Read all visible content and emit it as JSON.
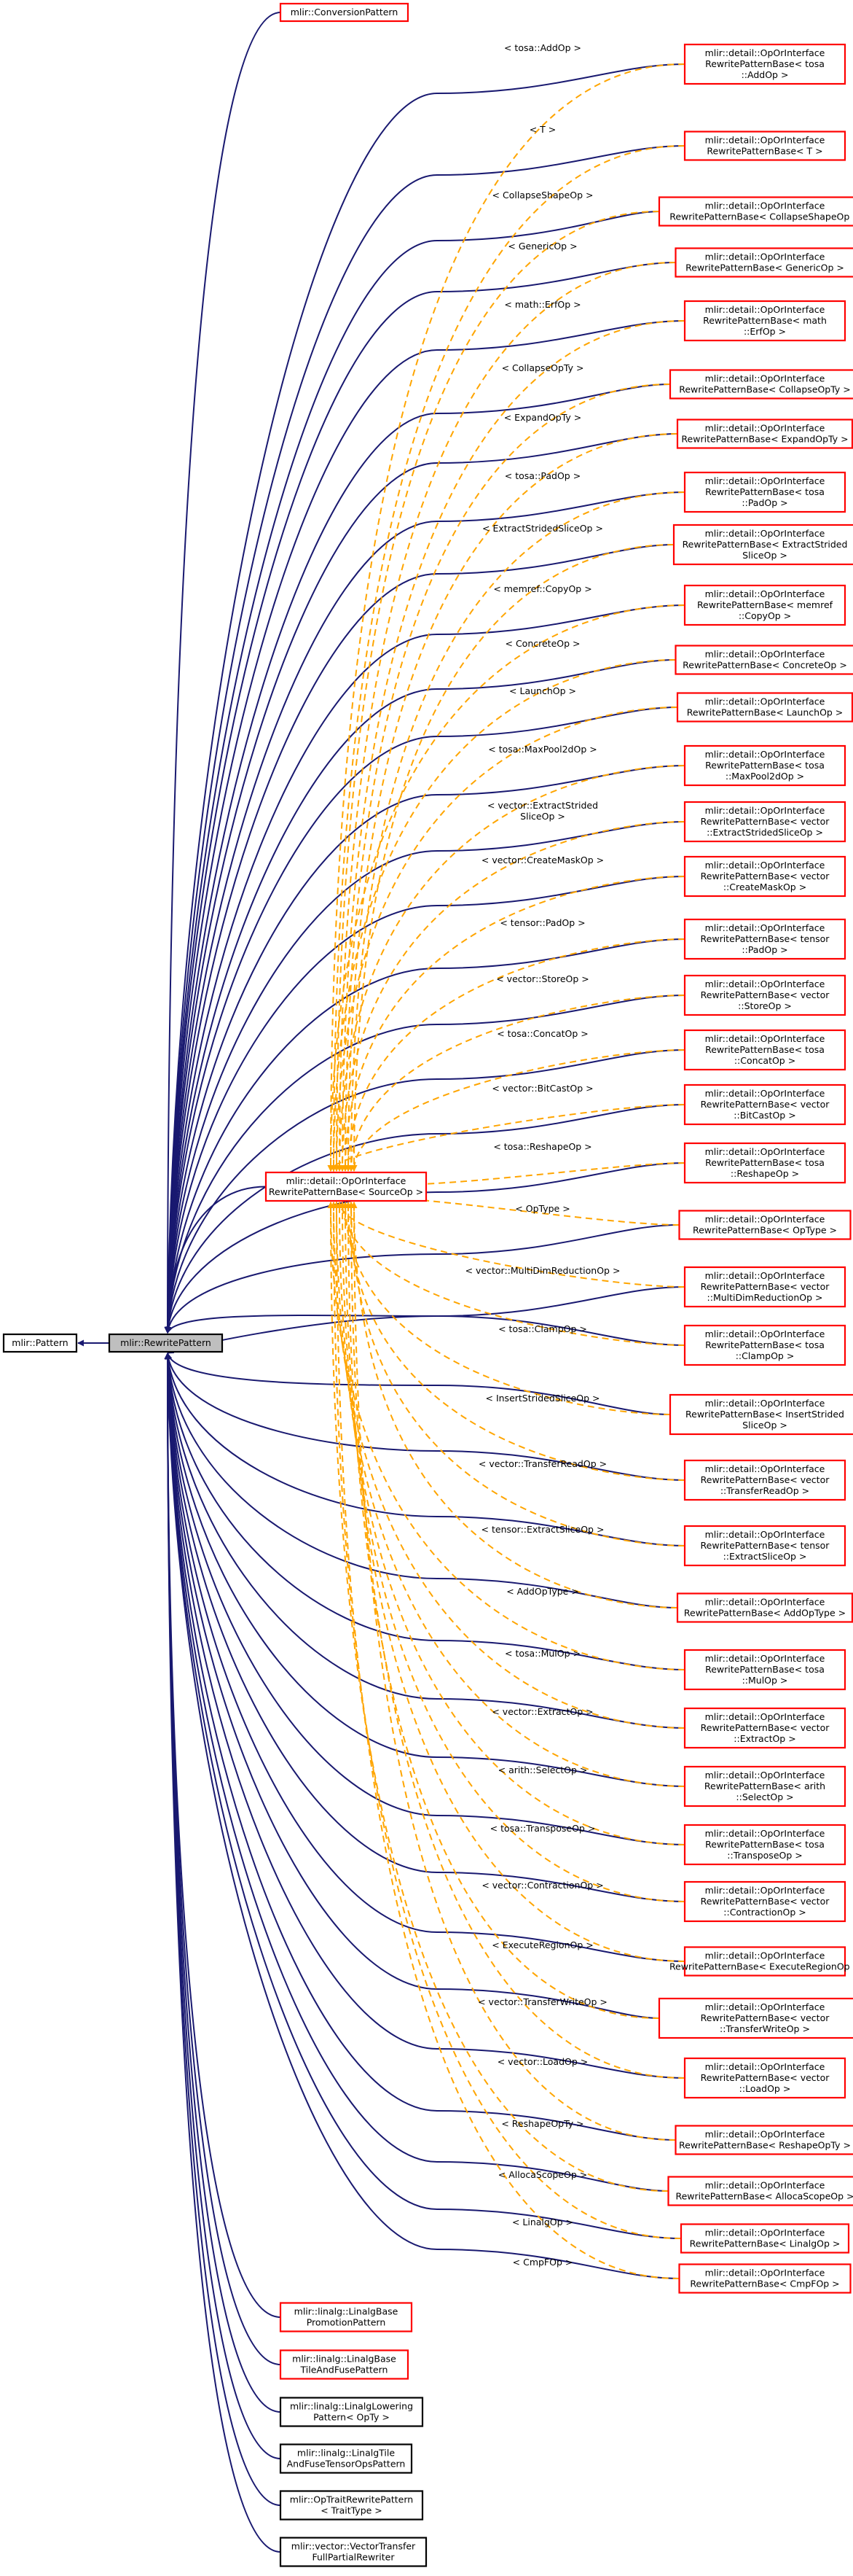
{
  "diagram": {
    "colors": {
      "inheritance_edge": "#191970",
      "template_edge": "#ffa500",
      "undocumented_border": "#ff0000",
      "documented_border": "#000000",
      "focus_fill": "#bfbfbf"
    },
    "root": {
      "id": "pattern",
      "lines": [
        "mlir::Pattern"
      ]
    },
    "focus": {
      "id": "rewrite",
      "lines": [
        "mlir::RewritePattern"
      ]
    },
    "base_template": {
      "id": "sourceop",
      "lines": [
        "mlir::detail::OpOrInterface",
        "RewritePatternBase< SourceOp >"
      ]
    },
    "top_children": [
      {
        "id": "conv",
        "lines": [
          "mlir::ConversionPattern"
        ]
      }
    ],
    "specializations": [
      {
        "id": "s01",
        "label": "< tosa::AddOp >",
        "lines": [
          "mlir::detail::OpOrInterface",
          "RewritePatternBase< tosa",
          "::AddOp >"
        ]
      },
      {
        "id": "s02",
        "label": "< T >",
        "lines": [
          "mlir::detail::OpOrInterface",
          "RewritePatternBase< T >"
        ]
      },
      {
        "id": "s03",
        "label": "< CollapseShapeOp >",
        "lines": [
          "mlir::detail::OpOrInterface",
          "RewritePatternBase< CollapseShapeOp >"
        ]
      },
      {
        "id": "s04",
        "label": "< GenericOp >",
        "lines": [
          "mlir::detail::OpOrInterface",
          "RewritePatternBase< GenericOp >"
        ]
      },
      {
        "id": "s05",
        "label": "< math::ErfOp >",
        "lines": [
          "mlir::detail::OpOrInterface",
          "RewritePatternBase< math",
          "::ErfOp >"
        ]
      },
      {
        "id": "s06",
        "label": "< CollapseOpTy >",
        "lines": [
          "mlir::detail::OpOrInterface",
          "RewritePatternBase< CollapseOpTy >"
        ]
      },
      {
        "id": "s07",
        "label": "< ExpandOpTy >",
        "lines": [
          "mlir::detail::OpOrInterface",
          "RewritePatternBase< ExpandOpTy >"
        ]
      },
      {
        "id": "s08",
        "label": "< tosa::PadOp >",
        "lines": [
          "mlir::detail::OpOrInterface",
          "RewritePatternBase< tosa",
          "::PadOp >"
        ]
      },
      {
        "id": "s09",
        "label": "< ExtractStridedSliceOp >",
        "lines": [
          "mlir::detail::OpOrInterface",
          "RewritePatternBase< ExtractStrided",
          "SliceOp >"
        ]
      },
      {
        "id": "s10",
        "label": "< memref::CopyOp >",
        "lines": [
          "mlir::detail::OpOrInterface",
          "RewritePatternBase< memref",
          "::CopyOp >"
        ]
      },
      {
        "id": "s11",
        "label": "< ConcreteOp >",
        "lines": [
          "mlir::detail::OpOrInterface",
          "RewritePatternBase< ConcreteOp >"
        ]
      },
      {
        "id": "s12",
        "label": "< LaunchOp >",
        "lines": [
          "mlir::detail::OpOrInterface",
          "RewritePatternBase< LaunchOp >"
        ]
      },
      {
        "id": "s13",
        "label": "< tosa::MaxPool2dOp >",
        "lines": [
          "mlir::detail::OpOrInterface",
          "RewritePatternBase< tosa",
          "::MaxPool2dOp >"
        ]
      },
      {
        "id": "s14",
        "label": "< vector::ExtractStrided SliceOp >",
        "lines": [
          "mlir::detail::OpOrInterface",
          "RewritePatternBase< vector",
          "::ExtractStridedSliceOp >"
        ]
      },
      {
        "id": "s15",
        "label": "< vector::CreateMaskOp >",
        "lines": [
          "mlir::detail::OpOrInterface",
          "RewritePatternBase< vector",
          "::CreateMaskOp >"
        ]
      },
      {
        "id": "s16",
        "label": "< tensor::PadOp >",
        "lines": [
          "mlir::detail::OpOrInterface",
          "RewritePatternBase< tensor",
          "::PadOp >"
        ]
      },
      {
        "id": "s17",
        "label": "< vector::StoreOp >",
        "lines": [
          "mlir::detail::OpOrInterface",
          "RewritePatternBase< vector",
          "::StoreOp >"
        ]
      },
      {
        "id": "s18",
        "label": "< tosa::ConcatOp >",
        "lines": [
          "mlir::detail::OpOrInterface",
          "RewritePatternBase< tosa",
          "::ConcatOp >"
        ]
      },
      {
        "id": "s19",
        "label": "< vector::BitCastOp >",
        "lines": [
          "mlir::detail::OpOrInterface",
          "RewritePatternBase< vector",
          "::BitCastOp >"
        ]
      },
      {
        "id": "s20",
        "label": "< tosa::ReshapeOp >",
        "lines": [
          "mlir::detail::OpOrInterface",
          "RewritePatternBase< tosa",
          "::ReshapeOp >"
        ]
      },
      {
        "id": "s21",
        "label": "< OpType >",
        "lines": [
          "mlir::detail::OpOrInterface",
          "RewritePatternBase< OpType >"
        ]
      },
      {
        "id": "s22",
        "label": "< vector::MultiDimReductionOp >",
        "lines": [
          "mlir::detail::OpOrInterface",
          "RewritePatternBase< vector",
          "::MultiDimReductionOp >"
        ]
      },
      {
        "id": "s23",
        "label": "< tosa::ClampOp >",
        "lines": [
          "mlir::detail::OpOrInterface",
          "RewritePatternBase< tosa",
          "::ClampOp >"
        ]
      },
      {
        "id": "s24",
        "label": "< InsertStridedSliceOp >",
        "lines": [
          "mlir::detail::OpOrInterface",
          "RewritePatternBase< InsertStrided",
          "SliceOp >"
        ]
      },
      {
        "id": "s25",
        "label": "< vector::TransferReadOp >",
        "lines": [
          "mlir::detail::OpOrInterface",
          "RewritePatternBase< vector",
          "::TransferReadOp >"
        ]
      },
      {
        "id": "s26",
        "label": "< tensor::ExtractSliceOp >",
        "lines": [
          "mlir::detail::OpOrInterface",
          "RewritePatternBase< tensor",
          "::ExtractSliceOp >"
        ]
      },
      {
        "id": "s27",
        "label": "< AddOpType >",
        "lines": [
          "mlir::detail::OpOrInterface",
          "RewritePatternBase< AddOpType >"
        ]
      },
      {
        "id": "s28",
        "label": "< tosa::MulOp >",
        "lines": [
          "mlir::detail::OpOrInterface",
          "RewritePatternBase< tosa",
          "::MulOp >"
        ]
      },
      {
        "id": "s29",
        "label": "< vector::ExtractOp >",
        "lines": [
          "mlir::detail::OpOrInterface",
          "RewritePatternBase< vector",
          "::ExtractOp >"
        ]
      },
      {
        "id": "s30",
        "label": "< arith::SelectOp >",
        "lines": [
          "mlir::detail::OpOrInterface",
          "RewritePatternBase< arith",
          "::SelectOp >"
        ]
      },
      {
        "id": "s31",
        "label": "< tosa::TransposeOp >",
        "lines": [
          "mlir::detail::OpOrInterface",
          "RewritePatternBase< tosa",
          "::TransposeOp >"
        ]
      },
      {
        "id": "s32",
        "label": "< vector::ContractionOp >",
        "lines": [
          "mlir::detail::OpOrInterface",
          "RewritePatternBase< vector",
          "::ContractionOp >"
        ]
      },
      {
        "id": "s33",
        "label": "< ExecuteRegionOp >",
        "lines": [
          "mlir::detail::OpOrInterface",
          "RewritePatternBase< ExecuteRegionOp >"
        ]
      },
      {
        "id": "s34",
        "label": "< vector::TransferWriteOp >",
        "lines": [
          "mlir::detail::OpOrInterface",
          "RewritePatternBase< vector",
          "::TransferWriteOp >"
        ]
      },
      {
        "id": "s35",
        "label": "< vector::LoadOp >",
        "lines": [
          "mlir::detail::OpOrInterface",
          "RewritePatternBase< vector",
          "::LoadOp >"
        ]
      },
      {
        "id": "s36",
        "label": "< ReshapeOpTy >",
        "lines": [
          "mlir::detail::OpOrInterface",
          "RewritePatternBase< ReshapeOpTy >"
        ]
      },
      {
        "id": "s37",
        "label": "< AllocaScopeOp >",
        "lines": [
          "mlir::detail::OpOrInterface",
          "RewritePatternBase< AllocaScopeOp >"
        ]
      },
      {
        "id": "s38",
        "label": "< LinalgOp >",
        "lines": [
          "mlir::detail::OpOrInterface",
          "RewritePatternBase< LinalgOp >"
        ]
      },
      {
        "id": "s39",
        "label": "< CmpFOp >",
        "lines": [
          "mlir::detail::OpOrInterface",
          "RewritePatternBase< CmpFOp >"
        ]
      }
    ],
    "bottom_children": [
      {
        "id": "b1",
        "documented": false,
        "lines": [
          "mlir::linalg::LinalgBase",
          "PromotionPattern"
        ]
      },
      {
        "id": "b2",
        "documented": false,
        "lines": [
          "mlir::linalg::LinalgBase",
          "TileAndFusePattern"
        ]
      },
      {
        "id": "b3",
        "documented": true,
        "lines": [
          "mlir::linalg::LinalgLowering",
          "Pattern< OpTy >"
        ]
      },
      {
        "id": "b4",
        "documented": true,
        "lines": [
          "mlir::linalg::LinalgTile",
          "AndFuseTensorOpsPattern"
        ]
      },
      {
        "id": "b5",
        "documented": true,
        "lines": [
          "mlir::OpTraitRewritePattern",
          "< TraitType >"
        ]
      },
      {
        "id": "b6",
        "documented": true,
        "lines": [
          "mlir::vector::VectorTransfer",
          "FullPartialRewriter"
        ]
      }
    ]
  }
}
